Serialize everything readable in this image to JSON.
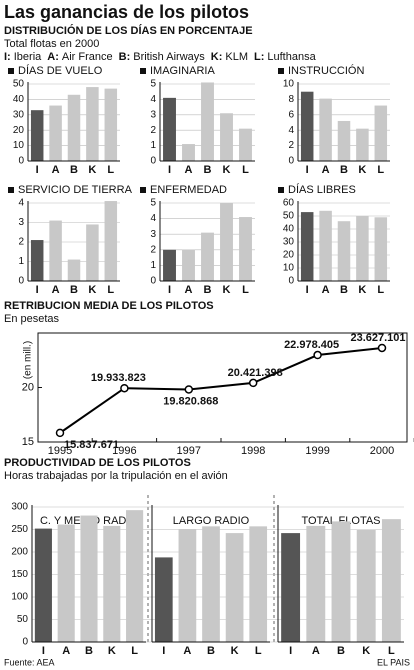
{
  "title": "Las ganancias de los pilotos",
  "distribution": {
    "title": "DISTRIBUCIÓN DE LOS DÍAS EN PORCENTAJE",
    "subtitle": "Total flotas en 2000",
    "legend": [
      {
        "key": "I:",
        "name": "Iberia"
      },
      {
        "key": "A:",
        "name": "Air France"
      },
      {
        "key": "B:",
        "name": "British Airways"
      },
      {
        "key": "K:",
        "name": "KLM"
      },
      {
        "key": "L:",
        "name": "Lufthansa"
      }
    ]
  },
  "productivity": {
    "title": "PRODUCTIVIDAD DE LOS PILOTOS",
    "subtitle": "Horas trabajadas por la tripulación en el avión"
  },
  "source": "Fuente: AEA",
  "credit": "EL PAIS",
  "chart_data": [
    {
      "type": "bar",
      "title": "DÍAS DE VUELO",
      "categories": [
        "I",
        "A",
        "B",
        "K",
        "L"
      ],
      "values": [
        33,
        36,
        43,
        48,
        47
      ],
      "colors": [
        "#555555",
        "#c8c8c8",
        "#c8c8c8",
        "#c8c8c8",
        "#c8c8c8"
      ],
      "ylim": [
        0,
        50
      ],
      "yticks": [
        0,
        10,
        20,
        30,
        40,
        50
      ]
    },
    {
      "type": "bar",
      "title": "IMAGINARIA",
      "categories": [
        "I",
        "A",
        "B",
        "K",
        "L"
      ],
      "values": [
        4.1,
        1.1,
        5.1,
        3.1,
        2.1
      ],
      "colors": [
        "#555555",
        "#c8c8c8",
        "#c8c8c8",
        "#c8c8c8",
        "#c8c8c8"
      ],
      "ylim": [
        0,
        5
      ],
      "yticks": [
        0,
        1,
        2,
        3,
        4,
        5
      ]
    },
    {
      "type": "bar",
      "title": "INSTRUCCIÓN",
      "categories": [
        "I",
        "A",
        "B",
        "K",
        "L"
      ],
      "values": [
        9,
        8.1,
        5.2,
        4.2,
        7.2
      ],
      "colors": [
        "#555555",
        "#c8c8c8",
        "#c8c8c8",
        "#c8c8c8",
        "#c8c8c8"
      ],
      "ylim": [
        0,
        10
      ],
      "yticks": [
        0,
        2,
        4,
        6,
        8,
        10
      ]
    },
    {
      "type": "bar",
      "title": "SERVICIO DE TIERRA",
      "categories": [
        "I",
        "A",
        "B",
        "K",
        "L"
      ],
      "values": [
        2.1,
        3.1,
        1.1,
        2.9,
        4.1
      ],
      "colors": [
        "#555555",
        "#c8c8c8",
        "#c8c8c8",
        "#c8c8c8",
        "#c8c8c8"
      ],
      "ylim": [
        0,
        4
      ],
      "yticks": [
        0,
        1,
        2,
        3,
        4
      ]
    },
    {
      "type": "bar",
      "title": "ENFERMEDAD",
      "categories": [
        "I",
        "A",
        "B",
        "K",
        "L"
      ],
      "values": [
        2,
        2,
        3.1,
        5,
        4.1
      ],
      "colors": [
        "#555555",
        "#c8c8c8",
        "#c8c8c8",
        "#c8c8c8",
        "#c8c8c8"
      ],
      "ylim": [
        0,
        5
      ],
      "yticks": [
        0,
        1,
        2,
        3,
        4,
        5
      ]
    },
    {
      "type": "bar",
      "title": "DÍAS LIBRES",
      "categories": [
        "I",
        "A",
        "B",
        "K",
        "L"
      ],
      "values": [
        53,
        54,
        46,
        50,
        49
      ],
      "colors": [
        "#555555",
        "#c8c8c8",
        "#c8c8c8",
        "#c8c8c8",
        "#c8c8c8"
      ],
      "ylim": [
        0,
        60
      ],
      "yticks": [
        0,
        10,
        20,
        30,
        40,
        50,
        60
      ]
    },
    {
      "type": "line",
      "title": "RETRIBUCION MEDIA DE LOS PILOTOS",
      "subtitle": "En pesetas",
      "y_label": "(en mill.)",
      "categories": [
        "1995",
        "1996",
        "1997",
        "1998",
        "1999",
        "2000"
      ],
      "values": [
        15.837671,
        19.933823,
        19.820868,
        20.421398,
        22.978405,
        23.627101
      ],
      "value_labels": [
        "15.837.671",
        "19.933.823",
        "19.820.868",
        "20.421.398",
        "22.978.405",
        "23.627.101"
      ],
      "color": "#000000",
      "ylim": [
        15,
        25
      ],
      "yticks": [
        15,
        20
      ]
    },
    {
      "type": "bar",
      "title": "C. Y MEDIO RADIO",
      "categories": [
        "I",
        "A",
        "B",
        "K",
        "L"
      ],
      "values": [
        252,
        261,
        281,
        258,
        293
      ],
      "colors": [
        "#555555",
        "#c8c8c8",
        "#c8c8c8",
        "#c8c8c8",
        "#c8c8c8"
      ],
      "ylim": [
        0,
        300
      ],
      "yticks": [
        0,
        50,
        100,
        150,
        200,
        250,
        300
      ]
    },
    {
      "type": "bar",
      "title": "LARGO RADIO",
      "categories": [
        "I",
        "A",
        "B",
        "K",
        "L"
      ],
      "values": [
        188,
        251,
        257,
        242,
        257
      ],
      "colors": [
        "#555555",
        "#c8c8c8",
        "#c8c8c8",
        "#c8c8c8",
        "#c8c8c8"
      ],
      "ylim": [
        0,
        300
      ]
    },
    {
      "type": "bar",
      "title": "TOTAL FLOTAS",
      "categories": [
        "I",
        "A",
        "B",
        "K",
        "L"
      ],
      "values": [
        242,
        258,
        268,
        249,
        273
      ],
      "colors": [
        "#555555",
        "#c8c8c8",
        "#c8c8c8",
        "#c8c8c8",
        "#c8c8c8"
      ],
      "ylim": [
        0,
        300
      ]
    }
  ]
}
